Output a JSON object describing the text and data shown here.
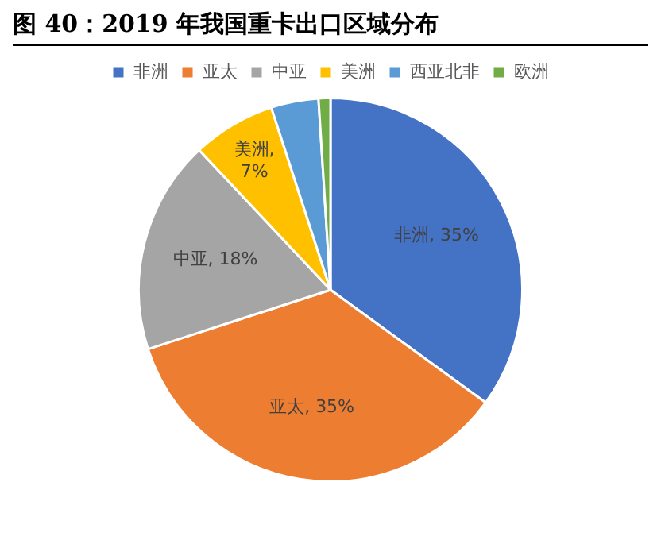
{
  "chart_data": {
    "type": "pie",
    "title": "图 40：2019 年我国重卡出口区域分布",
    "categories": [
      "非洲",
      "亚太",
      "中亚",
      "美洲",
      "西亚北非",
      "欧洲"
    ],
    "values": [
      35,
      35,
      18,
      7,
      4,
      1
    ],
    "colors": [
      "#4472c4",
      "#ed7d31",
      "#a5a5a5",
      "#ffc000",
      "#5b9bd5",
      "#70ad47"
    ],
    "value_labels": [
      "非洲, 35%",
      "亚太, 35%",
      "中亚, 18%",
      "美洲, 7%",
      null,
      null
    ],
    "legend": "top"
  }
}
